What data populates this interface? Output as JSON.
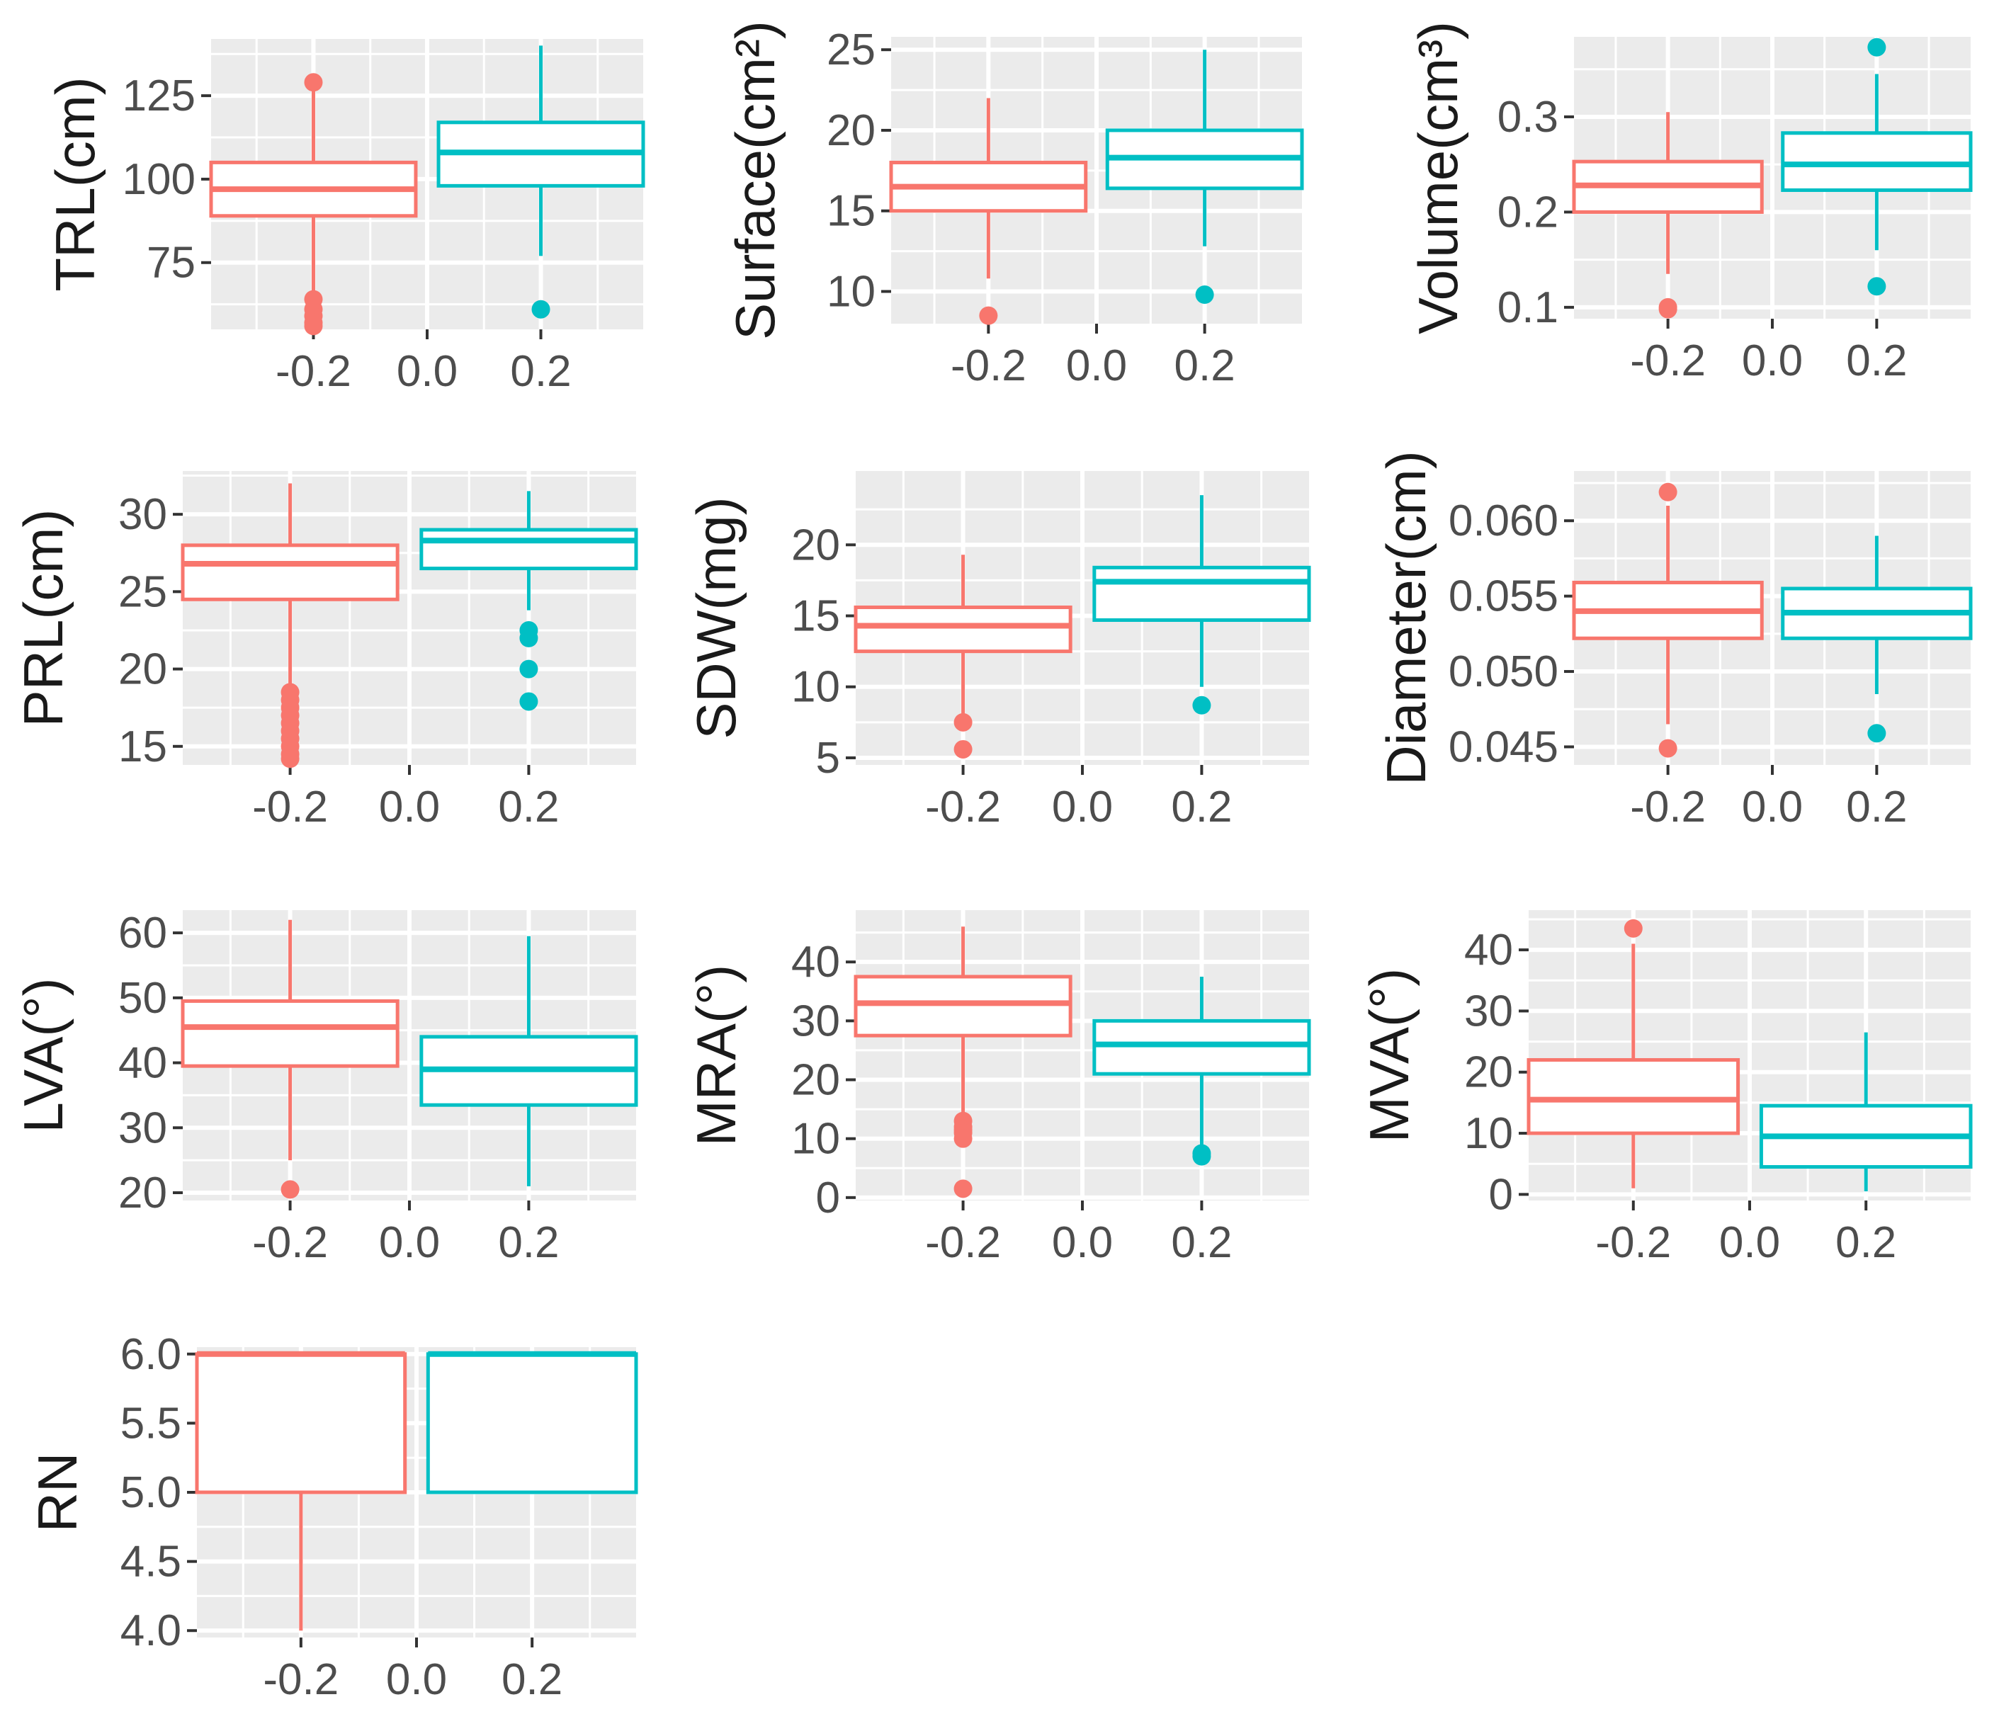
{
  "colors": {
    "group_neg": "#F8766D",
    "group_pos": "#00BFC4",
    "panel_bg": "#EBEBEB",
    "grid": "#FFFFFF",
    "tick": "#4D4D4D"
  },
  "chart_data": [
    {
      "type": "box",
      "ylabel": "TRL(cm)",
      "xlim": [
        -0.38,
        0.38
      ],
      "ylim": [
        55,
        142
      ],
      "xticks": [
        "-0.2",
        "0.0",
        "0.2"
      ],
      "yticks": [
        75,
        100,
        125
      ],
      "groups": [
        {
          "x": -0.2,
          "q1": 89,
          "median": 97,
          "q3": 105,
          "whisker_low": 65,
          "whisker_high": 129,
          "outliers": [
            129,
            64,
            61,
            59,
            57,
            56
          ]
        },
        {
          "x": 0.2,
          "q1": 98,
          "median": 108,
          "q3": 117,
          "whisker_low": 77,
          "whisker_high": 140,
          "outliers": [
            61
          ]
        }
      ]
    },
    {
      "type": "box",
      "ylabel": "Surface(cm²)",
      "xlim": [
        -0.38,
        0.38
      ],
      "ylim": [
        8,
        25.8
      ],
      "xticks": [
        "-0.2",
        "0.0",
        "0.2"
      ],
      "yticks": [
        10,
        15,
        20,
        25
      ],
      "groups": [
        {
          "x": -0.2,
          "q1": 15,
          "median": 16.5,
          "q3": 18,
          "whisker_low": 10.8,
          "whisker_high": 22,
          "outliers": [
            8.5
          ]
        },
        {
          "x": 0.2,
          "q1": 16.4,
          "median": 18.3,
          "q3": 20,
          "whisker_low": 12.8,
          "whisker_high": 25,
          "outliers": [
            9.8
          ]
        }
      ]
    },
    {
      "type": "box",
      "ylabel": "Volume(cm³)",
      "xlim": [
        -0.38,
        0.38
      ],
      "ylim": [
        0.088,
        0.384
      ],
      "xticks": [
        "-0.2",
        "0.0",
        "0.2"
      ],
      "yticks": [
        0.1,
        0.2,
        0.3
      ],
      "groups": [
        {
          "x": -0.2,
          "q1": 0.2,
          "median": 0.228,
          "q3": 0.253,
          "whisker_low": 0.135,
          "whisker_high": 0.305,
          "outliers": [
            0.1,
            0.098
          ]
        },
        {
          "x": 0.2,
          "q1": 0.223,
          "median": 0.25,
          "q3": 0.283,
          "whisker_low": 0.16,
          "whisker_high": 0.345,
          "outliers": [
            0.373,
            0.122
          ]
        }
      ]
    },
    {
      "type": "box",
      "ylabel": "PRL(cm)",
      "xlim": [
        -0.38,
        0.38
      ],
      "ylim": [
        13.8,
        32.8
      ],
      "xticks": [
        "-0.2",
        "0.0",
        "0.2"
      ],
      "yticks": [
        15,
        20,
        25,
        30
      ],
      "groups": [
        {
          "x": -0.2,
          "q1": 24.5,
          "median": 26.8,
          "q3": 28,
          "whisker_low": 19,
          "whisker_high": 32,
          "outliers": [
            18.5,
            18,
            17.5,
            17,
            16.5,
            16,
            15.5,
            15,
            14.5,
            14.2
          ]
        },
        {
          "x": 0.2,
          "q1": 26.5,
          "median": 28.3,
          "q3": 29,
          "whisker_low": 23.8,
          "whisker_high": 31.5,
          "outliers": [
            22.5,
            22,
            20,
            17.9
          ]
        }
      ]
    },
    {
      "type": "box",
      "ylabel": "SDW(mg)",
      "xlim": [
        -0.38,
        0.38
      ],
      "ylim": [
        4.5,
        25.2
      ],
      "xticks": [
        "-0.2",
        "0.0",
        "0.2"
      ],
      "yticks": [
        5,
        10,
        15,
        20
      ],
      "groups": [
        {
          "x": -0.2,
          "q1": 12.5,
          "median": 14.3,
          "q3": 15.6,
          "whisker_low": 8,
          "whisker_high": 19.3,
          "outliers": [
            7.5,
            5.6
          ]
        },
        {
          "x": 0.2,
          "q1": 14.7,
          "median": 17.4,
          "q3": 18.4,
          "whisker_low": 10,
          "whisker_high": 23.5,
          "outliers": [
            8.7
          ]
        }
      ]
    },
    {
      "type": "box",
      "ylabel": "Diameter(cm)",
      "xlim": [
        -0.38,
        0.38
      ],
      "ylim": [
        0.0438,
        0.0633
      ],
      "xticks": [
        "-0.2",
        "0.0",
        "0.2"
      ],
      "yticks": [
        0.045,
        0.05,
        0.055,
        0.06
      ],
      "yticklabels": [
        "0.045",
        "0.050",
        "0.055",
        "0.060"
      ],
      "groups": [
        {
          "x": -0.2,
          "q1": 0.0522,
          "median": 0.054,
          "q3": 0.0559,
          "whisker_low": 0.0465,
          "whisker_high": 0.061,
          "outliers": [
            0.0619,
            0.0449
          ]
        },
        {
          "x": 0.2,
          "q1": 0.0522,
          "median": 0.0539,
          "q3": 0.0555,
          "whisker_low": 0.0485,
          "whisker_high": 0.059,
          "outliers": [
            0.0459
          ]
        }
      ]
    },
    {
      "type": "box",
      "ylabel": "LVA(°)",
      "xlim": [
        -0.38,
        0.38
      ],
      "ylim": [
        18.8,
        63.5
      ],
      "xticks": [
        "-0.2",
        "0.0",
        "0.2"
      ],
      "yticks": [
        20,
        30,
        40,
        50,
        60
      ],
      "groups": [
        {
          "x": -0.2,
          "q1": 39.5,
          "median": 45.5,
          "q3": 49.5,
          "whisker_low": 25,
          "whisker_high": 62,
          "outliers": [
            20.5
          ]
        },
        {
          "x": 0.2,
          "q1": 33.5,
          "median": 39,
          "q3": 44,
          "whisker_low": 21,
          "whisker_high": 59.5,
          "outliers": []
        }
      ]
    },
    {
      "type": "box",
      "ylabel": "MRA(°)",
      "xlim": [
        -0.38,
        0.38
      ],
      "ylim": [
        -0.5,
        48.8
      ],
      "xticks": [
        "-0.2",
        "0.0",
        "0.2"
      ],
      "yticks": [
        0,
        10,
        20,
        30,
        40
      ],
      "groups": [
        {
          "x": -0.2,
          "q1": 27.5,
          "median": 33,
          "q3": 37.5,
          "whisker_low": 14,
          "whisker_high": 46,
          "outliers": [
            13,
            12,
            11.5,
            11,
            10,
            1.5
          ]
        },
        {
          "x": 0.2,
          "q1": 21,
          "median": 26,
          "q3": 30,
          "whisker_low": 8,
          "whisker_high": 37.5,
          "outliers": [
            7.5,
            7
          ]
        }
      ]
    },
    {
      "type": "box",
      "ylabel": "MVA(°)",
      "xlim": [
        -0.38,
        0.38
      ],
      "ylim": [
        -1,
        46.5
      ],
      "xticks": [
        "-0.2",
        "0.0",
        "0.2"
      ],
      "yticks": [
        0,
        10,
        20,
        30,
        40
      ],
      "groups": [
        {
          "x": -0.2,
          "q1": 10,
          "median": 15.5,
          "q3": 22,
          "whisker_low": 1,
          "whisker_high": 41,
          "outliers": [
            43.5
          ]
        },
        {
          "x": 0.2,
          "q1": 4.5,
          "median": 9.5,
          "q3": 14.5,
          "whisker_low": 0.5,
          "whisker_high": 26.5,
          "outliers": []
        }
      ]
    },
    {
      "type": "box",
      "ylabel": "RN",
      "xlim": [
        -0.38,
        0.38
      ],
      "ylim": [
        3.95,
        6.05
      ],
      "xticks": [
        "-0.2",
        "0.0",
        "0.2"
      ],
      "yticks": [
        4,
        4.5,
        5,
        5.5,
        6
      ],
      "yticklabels": [
        "4.0",
        "4.5",
        "5.0",
        "5.5",
        "6.0"
      ],
      "groups": [
        {
          "x": -0.2,
          "q1": 5,
          "median": 6,
          "q3": 6,
          "whisker_low": 4,
          "whisker_high": 6,
          "outliers": []
        },
        {
          "x": 0.2,
          "q1": 5,
          "median": 6,
          "q3": 6,
          "whisker_low": 5,
          "whisker_high": 6,
          "outliers": []
        }
      ]
    }
  ]
}
